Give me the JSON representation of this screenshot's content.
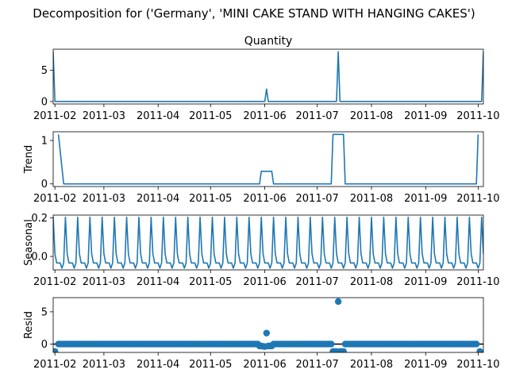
{
  "figure": {
    "suptitle": "Decomposition for ('Germany', 'MINI CAKE STAND WITH HANGING CAKES')"
  },
  "colors": {
    "series": "#1f77b4",
    "zero_line": "#000000"
  },
  "chart_data": [
    {
      "type": "line",
      "title": "Quantity",
      "ylabel": "",
      "xlabel": "",
      "x_range": [
        "2011-01-31",
        "2011-10-04"
      ],
      "x_ticks": [
        "2011-02",
        "2011-03",
        "2011-04",
        "2011-05",
        "2011-06",
        "2011-07",
        "2011-08",
        "2011-09",
        "2011-10"
      ],
      "y_range": [
        -0.4,
        8.4
      ],
      "y_ticks": [
        0,
        5
      ],
      "series": [
        {
          "points": [
            [
              "2011-01-31",
              8
            ],
            [
              "2011-02-01",
              0
            ],
            [
              "2011-06-01",
              0
            ],
            [
              "2011-06-02",
              2
            ],
            [
              "2011-06-03",
              0
            ],
            [
              "2011-07-12",
              0
            ],
            [
              "2011-07-13",
              8
            ],
            [
              "2011-07-14",
              0
            ],
            [
              "2011-10-03",
              0
            ],
            [
              "2011-10-04",
              8
            ]
          ]
        }
      ]
    },
    {
      "type": "line",
      "title": "",
      "ylabel": "Trend",
      "xlabel": "",
      "x_range": [
        "2011-01-31",
        "2011-10-04"
      ],
      "x_ticks": [
        "2011-02",
        "2011-03",
        "2011-04",
        "2011-05",
        "2011-06",
        "2011-07",
        "2011-08",
        "2011-09",
        "2011-10"
      ],
      "y_range": [
        -0.06,
        1.2
      ],
      "y_ticks": [
        0,
        1
      ],
      "series": [
        {
          "points": [
            [
              "2011-02-03",
              1.14
            ],
            [
              "2011-02-06",
              0
            ],
            [
              "2011-05-29",
              0
            ],
            [
              "2011-05-30",
              0.29
            ],
            [
              "2011-06-05",
              0.29
            ],
            [
              "2011-06-06",
              0
            ],
            [
              "2011-07-09",
              0
            ],
            [
              "2011-07-10",
              1.14
            ],
            [
              "2011-07-16",
              1.14
            ],
            [
              "2011-07-17",
              0
            ],
            [
              "2011-09-30",
              0
            ],
            [
              "2011-10-01",
              1.14
            ]
          ]
        }
      ]
    },
    {
      "type": "line",
      "title": "",
      "ylabel": "Seasonal",
      "xlabel": "",
      "x_range": [
        "2011-01-31",
        "2011-10-04"
      ],
      "x_ticks": [
        "2011-02",
        "2011-03",
        "2011-04",
        "2011-05",
        "2011-06",
        "2011-07",
        "2011-08",
        "2011-09",
        "2011-10"
      ],
      "y_range": [
        -0.07,
        0.215
      ],
      "y_ticks": [
        0.0,
        0.2
      ],
      "y_tick_labels": [
        "0.0",
        "0.2"
      ],
      "series": [
        {
          "periodic": {
            "start": "2011-01-31",
            "end": "2011-10-04",
            "step_days": 1,
            "first_phase": 4,
            "pattern": [
              -0.034,
              -0.034,
              -0.061,
              -0.034,
              0.204,
              0.014,
              -0.034
            ]
          }
        }
      ]
    },
    {
      "type": "scatter",
      "title": "",
      "ylabel": "Resid",
      "xlabel": "",
      "x_range": [
        "2011-01-31",
        "2011-10-04"
      ],
      "x_ticks": [
        "2011-02",
        "2011-03",
        "2011-04",
        "2011-05",
        "2011-06",
        "2011-07",
        "2011-08",
        "2011-09",
        "2011-10"
      ],
      "y_range": [
        -1.3,
        7.2
      ],
      "y_ticks": [
        0,
        5
      ],
      "zero_line": true,
      "series": [
        {
          "daily": {
            "start": "2011-02-03",
            "end": "2011-09-30",
            "default_value": 0,
            "overrides": [
              [
                "2011-05-29",
                -0.3
              ],
              [
                "2011-05-30",
                -0.3
              ],
              [
                "2011-05-31",
                -0.35
              ],
              [
                "2011-06-01",
                -0.4
              ],
              [
                "2011-06-02",
                1.7
              ],
              [
                "2011-06-03",
                -0.3
              ],
              [
                "2011-06-04",
                -0.3
              ],
              [
                "2011-06-05",
                -0.3
              ],
              [
                "2011-07-10",
                -1.15
              ],
              [
                "2011-07-11",
                -1.15
              ],
              [
                "2011-07-12",
                -1.15
              ],
              [
                "2011-07-13",
                6.6
              ],
              [
                "2011-07-14",
                -1.15
              ],
              [
                "2011-07-15",
                -1.15
              ],
              [
                "2011-07-16",
                -1.15
              ]
            ]
          },
          "extra_points": [
            [
              "2011-02-01",
              -1.15
            ],
            [
              "2011-10-02",
              -1.15
            ]
          ]
        }
      ]
    }
  ]
}
